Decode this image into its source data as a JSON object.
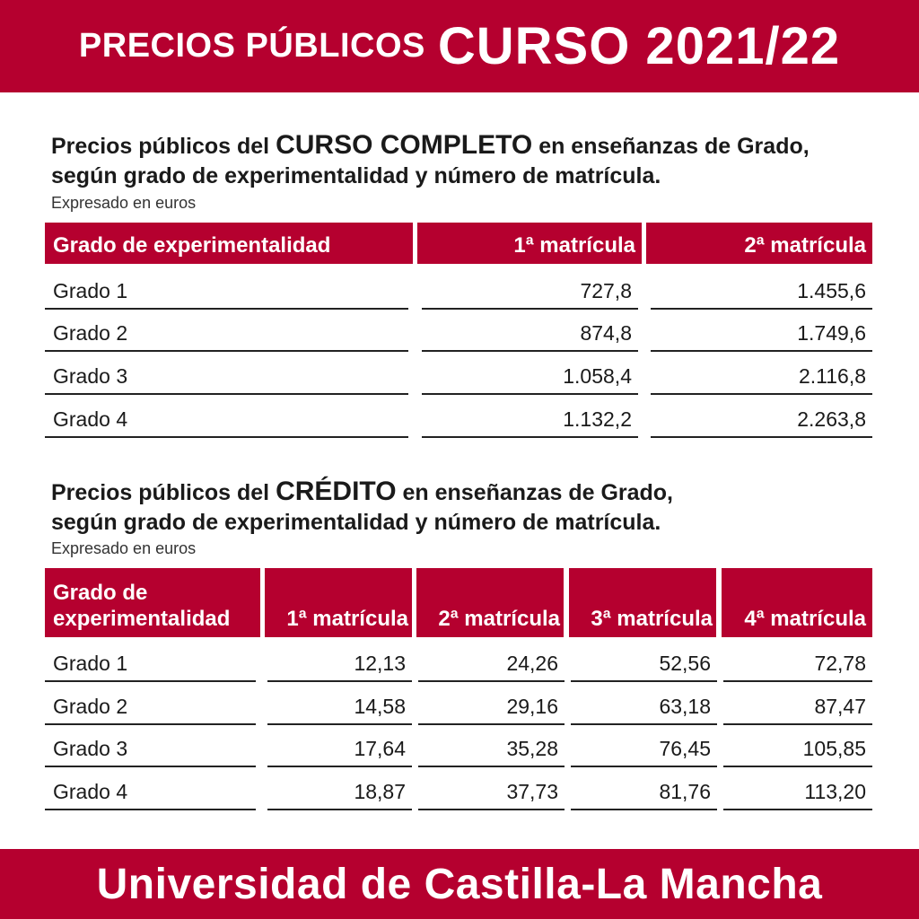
{
  "header": {
    "prefix": "PRECIOS PÚBLICOS",
    "title": "CURSO 2021/22"
  },
  "section1": {
    "heading_start": "Precios públicos del",
    "heading_em": "CURSO COMPLETO",
    "heading_end": "en enseñanzas de Grado,",
    "heading_line2": "según grado de experimentalidad y número de matrícula.",
    "note": "Expresado en euros",
    "columns": [
      "Grado de experimentalidad",
      "1ª matrícula",
      "2ª matrícula"
    ],
    "rows": [
      [
        "Grado 1",
        "727,8",
        "1.455,6"
      ],
      [
        "Grado 2",
        "874,8",
        "1.749,6"
      ],
      [
        "Grado 3",
        "1.058,4",
        "2.116,8"
      ],
      [
        "Grado 4",
        "1.132,2",
        "2.263,8"
      ]
    ]
  },
  "section2": {
    "heading_start": "Precios públicos del",
    "heading_em": "CRÉDITO",
    "heading_end": "en enseñanzas de Grado,",
    "heading_line2": "según grado de experimentalidad y número de matrícula.",
    "note": "Expresado en euros",
    "first_col_line1": "Grado de",
    "first_col_line2": "experimentalidad",
    "columns": [
      "1ª matrícula",
      "2ª matrícula",
      "3ª matrícula",
      "4ª matrícula"
    ],
    "rows": [
      [
        "Grado 1",
        "12,13",
        "24,26",
        "52,56",
        "72,78"
      ],
      [
        "Grado 2",
        "14,58",
        "29,16",
        "63,18",
        "87,47"
      ],
      [
        "Grado 3",
        "17,64",
        "35,28",
        "76,45",
        "105,85"
      ],
      [
        "Grado 4",
        "18,87",
        "37,73",
        "81,76",
        "113,20"
      ]
    ]
  },
  "footer": {
    "text": "Universidad de Castilla-La Mancha"
  },
  "colors": {
    "brand": "#b5002f",
    "text": "#1a1a1a",
    "background": "#ffffff"
  }
}
